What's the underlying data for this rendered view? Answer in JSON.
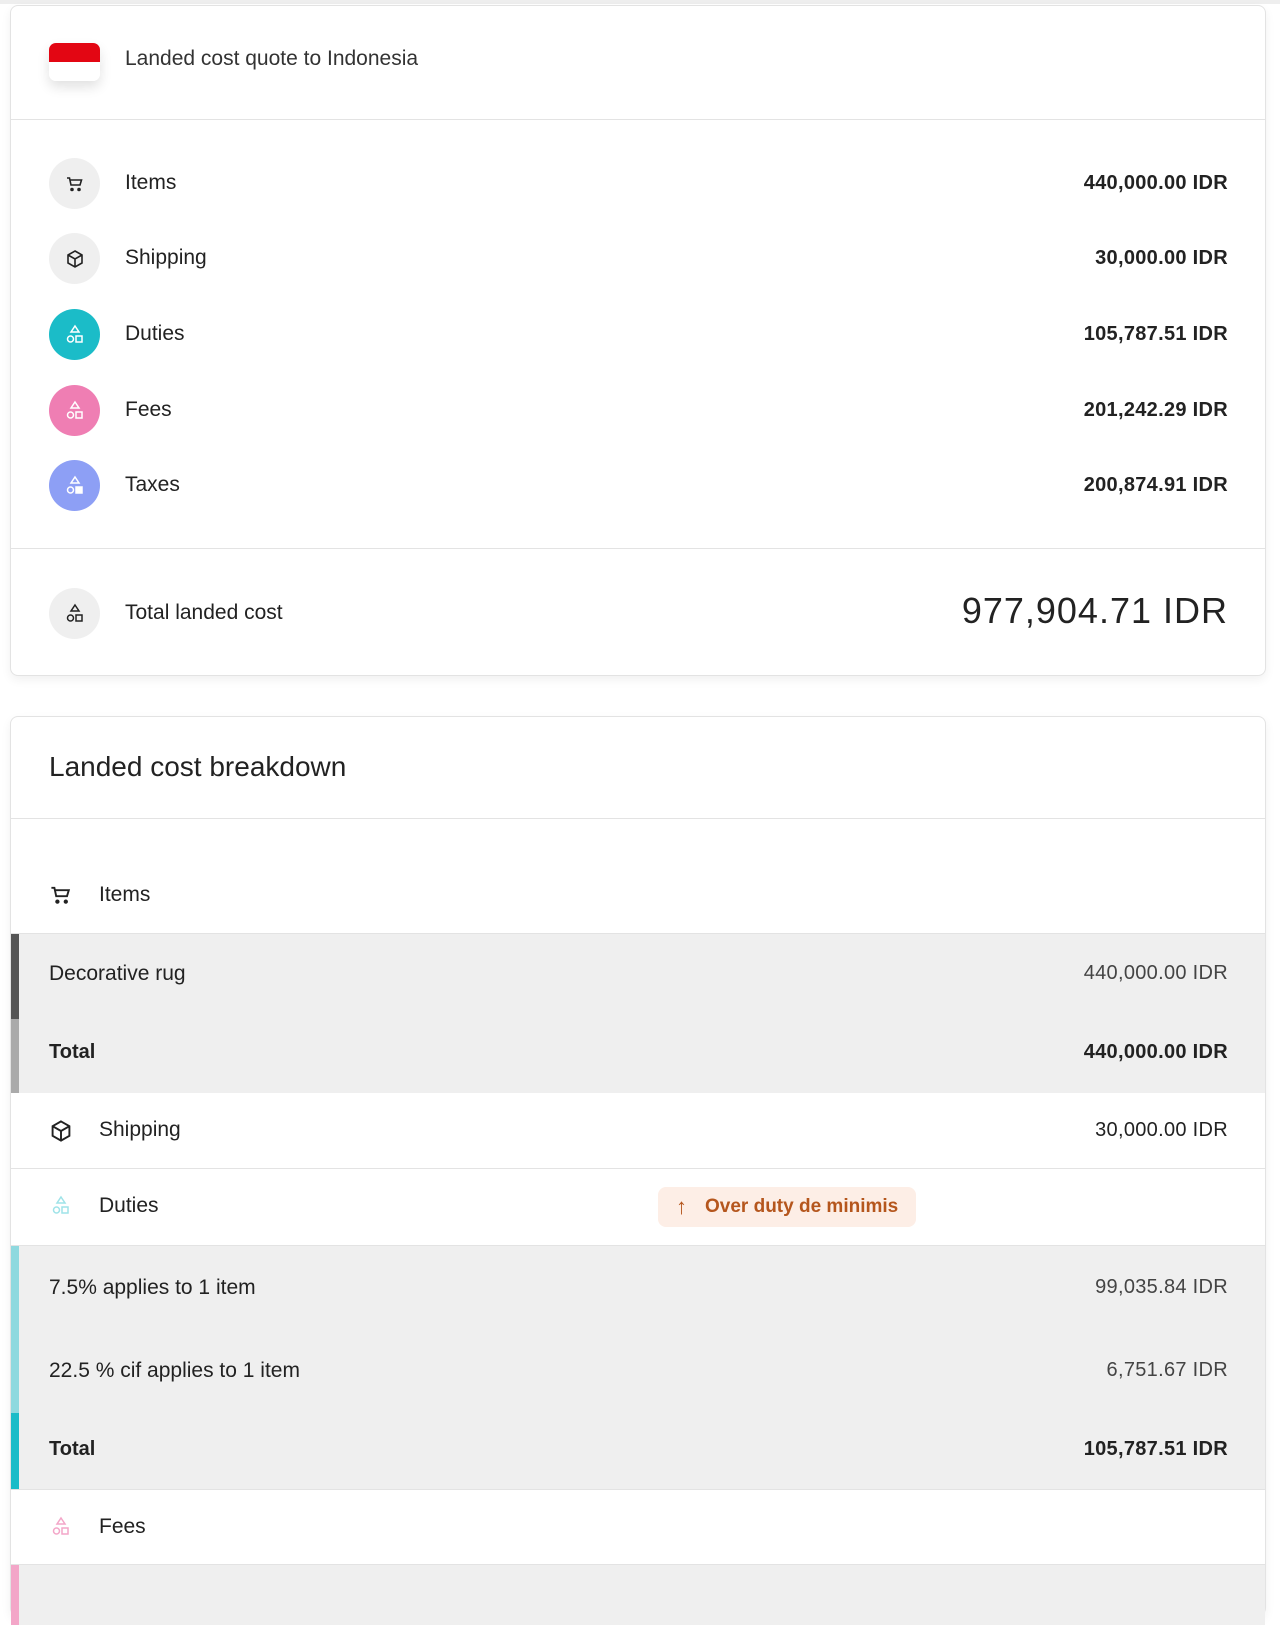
{
  "quote": {
    "title": "Landed cost quote to Indonesia",
    "flag": "indonesia-flag",
    "rows": [
      {
        "label": "Items",
        "value": "440,000.00 IDR",
        "icon": "cart-icon",
        "color": "#efefef"
      },
      {
        "label": "Shipping",
        "value": "30,000.00 IDR",
        "icon": "box-icon",
        "color": "#efefef"
      },
      {
        "label": "Duties",
        "value": "105,787.51 IDR",
        "icon": "shapes-icon",
        "color": "#1bbcc8"
      },
      {
        "label": "Fees",
        "value": "201,242.29 IDR",
        "icon": "shapes-icon",
        "color": "#ef7eb3"
      },
      {
        "label": "Taxes",
        "value": "200,874.91 IDR",
        "icon": "shapes-icon",
        "color": "#8d9ff5"
      }
    ],
    "total_label": "Total landed cost",
    "total_value": "977,904.71 IDR"
  },
  "breakdown": {
    "title": "Landed cost breakdown",
    "items": {
      "label": "Items",
      "lines": [
        {
          "label": "Decorative rug",
          "value": "440,000.00 IDR"
        }
      ],
      "total_label": "Total",
      "total_value": "440,000.00 IDR"
    },
    "shipping": {
      "label": "Shipping",
      "value": "30,000.00 IDR"
    },
    "duties": {
      "label": "Duties",
      "badge": "Over duty de minimis",
      "lines": [
        {
          "label": "7.5% applies to 1 item",
          "value": "99,035.84 IDR"
        },
        {
          "label": "22.5 % cif applies to 1 item",
          "value": "6,751.67 IDR"
        }
      ],
      "total_label": "Total",
      "total_value": "105,787.51 IDR"
    },
    "fees": {
      "label": "Fees"
    }
  },
  "colors": {
    "duties": "#1bbcc8",
    "fees": "#ef7eb3",
    "taxes": "#8d9ff5",
    "badge_text": "#b5561d",
    "badge_bg": "#fdeee6"
  }
}
